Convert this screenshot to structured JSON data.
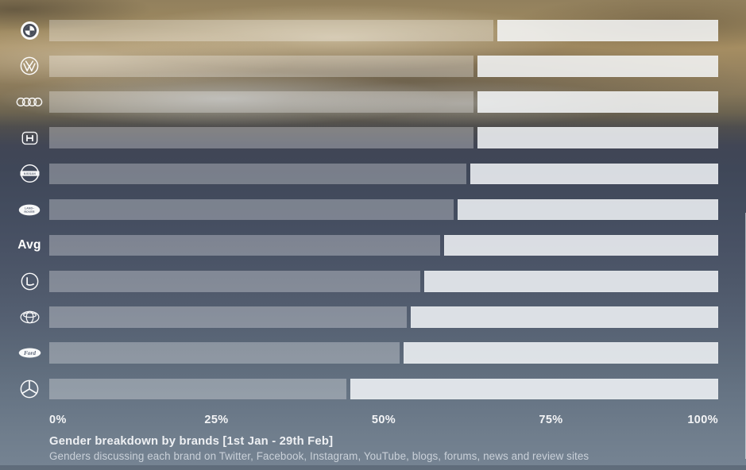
{
  "chart_data": {
    "type": "bar",
    "orientation": "horizontal",
    "stacked": true,
    "title": "Gender breakdown by brands [1st Jan - 29th Feb]",
    "subtitle": "Genders discussing each brand on Twitter, Facebook, Instagram, YouTube, blogs, forums, news and review sites",
    "x_ticks": [
      "0%",
      "25%",
      "50%",
      "75%",
      "100%"
    ],
    "xlim": [
      0,
      100
    ],
    "grid": false,
    "legend": "none",
    "categories": [
      "BMW",
      "Volkswagen",
      "Audi",
      "Honda",
      "Nissan",
      "Land Rover",
      "Avg",
      "Lexus",
      "Toyota",
      "Ford",
      "Mercedes-Benz"
    ],
    "series": [
      {
        "name": "left-segment",
        "values": [
          67,
          64,
          64,
          64,
          63,
          61,
          59,
          56,
          54,
          53,
          45
        ]
      },
      {
        "name": "right-segment",
        "values": [
          33,
          36,
          36,
          36,
          37,
          39,
          41,
          44,
          46,
          47,
          55
        ]
      }
    ]
  },
  "rows": [
    {
      "brand": "BMW",
      "icon": "bmw-icon",
      "label": ""
    },
    {
      "brand": "Volkswagen",
      "icon": "vw-icon",
      "label": ""
    },
    {
      "brand": "Audi",
      "icon": "audi-icon",
      "label": ""
    },
    {
      "brand": "Honda",
      "icon": "honda-icon",
      "label": ""
    },
    {
      "brand": "Nissan",
      "icon": "nissan-icon",
      "label": ""
    },
    {
      "brand": "Land Rover",
      "icon": "landrover-icon",
      "label": ""
    },
    {
      "brand": "Avg",
      "icon": null,
      "label": "Avg"
    },
    {
      "brand": "Lexus",
      "icon": "lexus-icon",
      "label": ""
    },
    {
      "brand": "Toyota",
      "icon": "toyota-icon",
      "label": ""
    },
    {
      "brand": "Ford",
      "icon": "ford-icon",
      "label": ""
    },
    {
      "brand": "Mercedes-Benz",
      "icon": "mercedes-icon",
      "label": ""
    }
  ],
  "colors": {
    "left_segment": "rgba(255,255,255,0.30)",
    "right_segment": "rgba(248,250,252,0.83)",
    "text": "#f1f3f5"
  }
}
